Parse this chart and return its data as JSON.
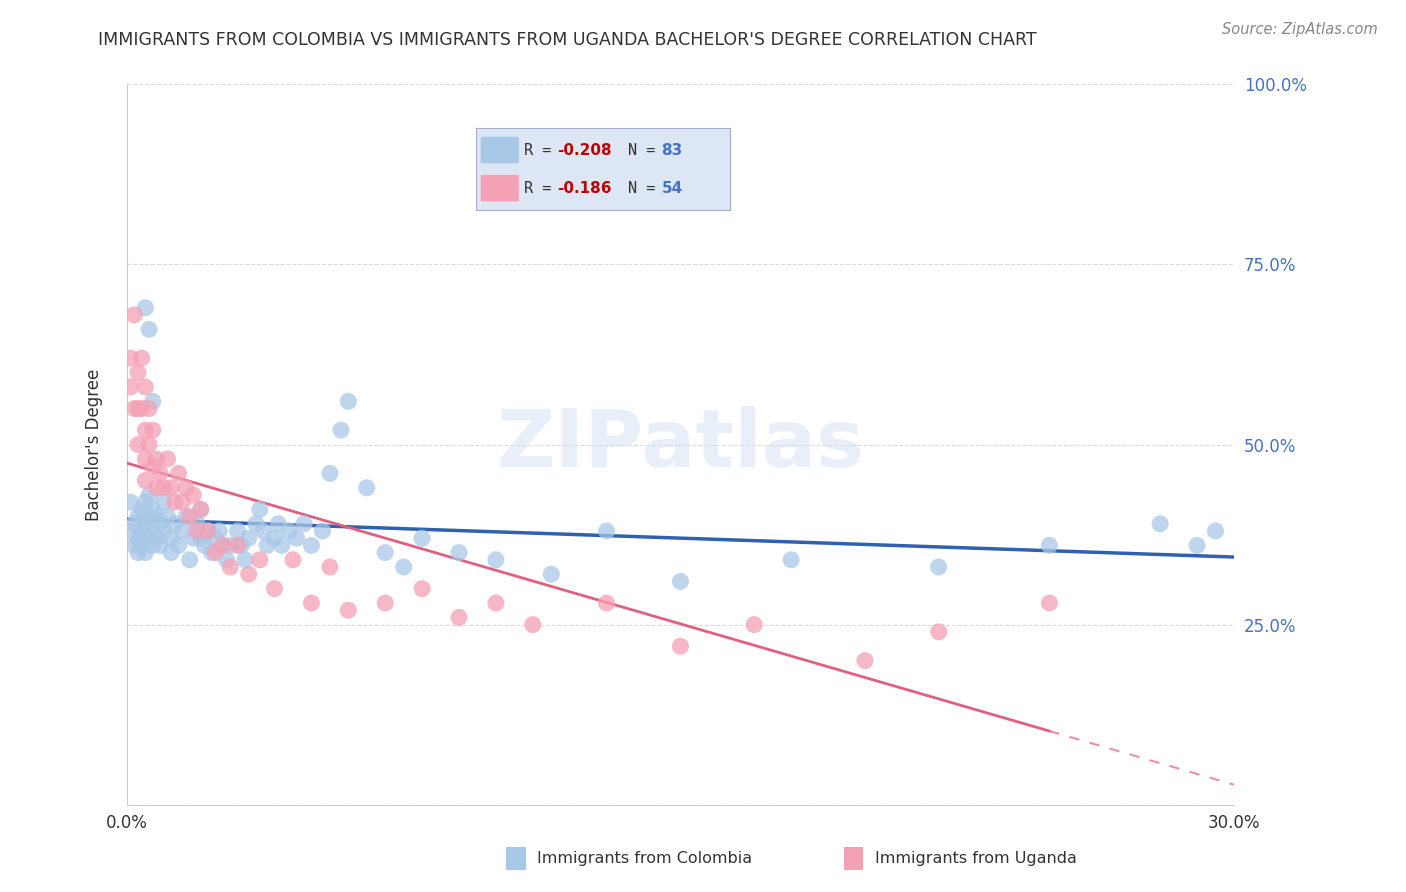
{
  "title": "IMMIGRANTS FROM COLOMBIA VS IMMIGRANTS FROM UGANDA BACHELOR'S DEGREE CORRELATION CHART",
  "source": "Source: ZipAtlas.com",
  "ylabel_left": "Bachelor's Degree",
  "x_min": 0.0,
  "x_max": 0.3,
  "y_min": 0.0,
  "y_max": 1.0,
  "yticks": [
    0.0,
    0.25,
    0.5,
    0.75,
    1.0
  ],
  "ytick_labels": [
    "",
    "25.0%",
    "50.0%",
    "75.0%",
    "100.0%"
  ],
  "xticks": [
    0.0,
    0.05,
    0.1,
    0.15,
    0.2,
    0.25,
    0.3
  ],
  "xtick_labels": [
    "0.0%",
    "",
    "",
    "",
    "",
    "",
    "30.0%"
  ],
  "colombia_R": -0.208,
  "colombia_N": 83,
  "uganda_R": -0.186,
  "uganda_N": 54,
  "colombia_color": "#a8c8e8",
  "uganda_color": "#f4a0b5",
  "colombia_line_color": "#3060b0",
  "uganda_line_color": "#e06080",
  "background_color": "#ffffff",
  "grid_color": "#cccccc",
  "title_color": "#333333",
  "source_color": "#888888",
  "watermark": "ZIPatlas",
  "legend_bg_color": "#dce6f4",
  "legend_border_color": "#aaaacc",
  "colombia_x": [
    0.001,
    0.001,
    0.002,
    0.002,
    0.003,
    0.003,
    0.003,
    0.004,
    0.004,
    0.004,
    0.005,
    0.005,
    0.005,
    0.005,
    0.006,
    0.006,
    0.006,
    0.007,
    0.007,
    0.007,
    0.008,
    0.008,
    0.009,
    0.009,
    0.01,
    0.01,
    0.011,
    0.012,
    0.012,
    0.013,
    0.014,
    0.015,
    0.016,
    0.017,
    0.018,
    0.019,
    0.02,
    0.02,
    0.021,
    0.022,
    0.023,
    0.024,
    0.025,
    0.026,
    0.027,
    0.028,
    0.03,
    0.031,
    0.032,
    0.033,
    0.035,
    0.036,
    0.037,
    0.038,
    0.04,
    0.041,
    0.042,
    0.044,
    0.046,
    0.048,
    0.05,
    0.053,
    0.055,
    0.058,
    0.06,
    0.065,
    0.07,
    0.075,
    0.08,
    0.09,
    0.1,
    0.115,
    0.13,
    0.15,
    0.18,
    0.22,
    0.25,
    0.28,
    0.29,
    0.295,
    0.005,
    0.006,
    0.007
  ],
  "colombia_y": [
    0.38,
    0.42,
    0.39,
    0.36,
    0.4,
    0.37,
    0.35,
    0.41,
    0.38,
    0.36,
    0.42,
    0.39,
    0.37,
    0.35,
    0.43,
    0.4,
    0.37,
    0.41,
    0.38,
    0.36,
    0.4,
    0.37,
    0.39,
    0.36,
    0.42,
    0.38,
    0.4,
    0.37,
    0.35,
    0.39,
    0.36,
    0.38,
    0.4,
    0.34,
    0.37,
    0.39,
    0.41,
    0.37,
    0.36,
    0.38,
    0.35,
    0.37,
    0.38,
    0.36,
    0.34,
    0.36,
    0.38,
    0.36,
    0.34,
    0.37,
    0.39,
    0.41,
    0.38,
    0.36,
    0.37,
    0.39,
    0.36,
    0.38,
    0.37,
    0.39,
    0.36,
    0.38,
    0.46,
    0.52,
    0.56,
    0.44,
    0.35,
    0.33,
    0.37,
    0.35,
    0.34,
    0.32,
    0.38,
    0.31,
    0.34,
    0.33,
    0.36,
    0.39,
    0.36,
    0.38,
    0.69,
    0.66,
    0.56
  ],
  "uganda_x": [
    0.001,
    0.001,
    0.002,
    0.002,
    0.003,
    0.003,
    0.003,
    0.004,
    0.004,
    0.005,
    0.005,
    0.005,
    0.005,
    0.006,
    0.006,
    0.007,
    0.007,
    0.008,
    0.008,
    0.009,
    0.01,
    0.011,
    0.012,
    0.013,
    0.014,
    0.015,
    0.016,
    0.017,
    0.018,
    0.019,
    0.02,
    0.022,
    0.024,
    0.026,
    0.028,
    0.03,
    0.033,
    0.036,
    0.04,
    0.045,
    0.05,
    0.055,
    0.06,
    0.07,
    0.08,
    0.09,
    0.1,
    0.11,
    0.13,
    0.15,
    0.17,
    0.2,
    0.22,
    0.25
  ],
  "uganda_y": [
    0.62,
    0.58,
    0.68,
    0.55,
    0.6,
    0.55,
    0.5,
    0.62,
    0.55,
    0.58,
    0.52,
    0.48,
    0.45,
    0.55,
    0.5,
    0.52,
    0.47,
    0.48,
    0.44,
    0.46,
    0.44,
    0.48,
    0.44,
    0.42,
    0.46,
    0.42,
    0.44,
    0.4,
    0.43,
    0.38,
    0.41,
    0.38,
    0.35,
    0.36,
    0.33,
    0.36,
    0.32,
    0.34,
    0.3,
    0.34,
    0.28,
    0.33,
    0.27,
    0.28,
    0.3,
    0.26,
    0.28,
    0.25,
    0.28,
    0.22,
    0.25,
    0.2,
    0.24,
    0.28
  ]
}
